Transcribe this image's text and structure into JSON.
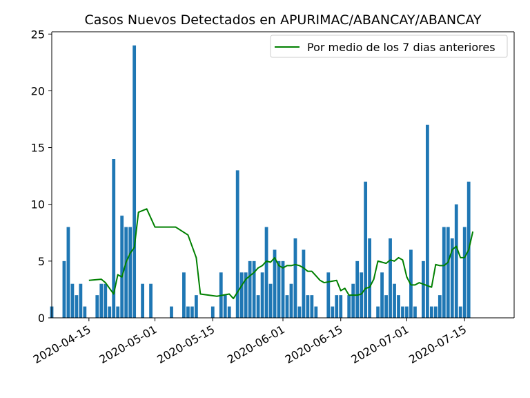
{
  "chart_data": {
    "type": "bar",
    "title": "Casos Nuevos Detectados en APURIMAC/ABANCAY/ABANCAY",
    "xlabel": "",
    "ylabel": "",
    "x_range": [
      "2020-04-06",
      "2020-07-27"
    ],
    "ylim": [
      0,
      25.2
    ],
    "y_ticks": [
      0,
      5,
      10,
      15,
      20,
      25
    ],
    "x_ticks": [
      "2020-04-15",
      "2020-05-01",
      "2020-05-15",
      "2020-06-01",
      "2020-06-15",
      "2020-07-01",
      "2020-07-15"
    ],
    "grid": false,
    "legend_position": "top-right",
    "colors": {
      "bars": "#1f77b4",
      "line": "#008000",
      "axis": "#000000"
    },
    "series": [
      {
        "type": "bar",
        "points": [
          [
            "2020-04-06",
            1
          ],
          [
            "2020-04-09",
            5
          ],
          [
            "2020-04-10",
            8
          ],
          [
            "2020-04-11",
            3
          ],
          [
            "2020-04-12",
            2
          ],
          [
            "2020-04-13",
            3
          ],
          [
            "2020-04-14",
            1
          ],
          [
            "2020-04-17",
            2
          ],
          [
            "2020-04-18",
            3
          ],
          [
            "2020-04-19",
            3
          ],
          [
            "2020-04-20",
            1
          ],
          [
            "2020-04-21",
            14
          ],
          [
            "2020-04-22",
            1
          ],
          [
            "2020-04-23",
            9
          ],
          [
            "2020-04-24",
            8
          ],
          [
            "2020-04-25",
            8
          ],
          [
            "2020-04-26",
            24
          ],
          [
            "2020-04-28",
            3
          ],
          [
            "2020-04-30",
            3
          ],
          [
            "2020-05-05",
            1
          ],
          [
            "2020-05-08",
            4
          ],
          [
            "2020-05-09",
            1
          ],
          [
            "2020-05-10",
            1
          ],
          [
            "2020-05-11",
            2
          ],
          [
            "2020-05-15",
            1
          ],
          [
            "2020-05-17",
            4
          ],
          [
            "2020-05-18",
            2
          ],
          [
            "2020-05-19",
            1
          ],
          [
            "2020-05-21",
            13
          ],
          [
            "2020-05-22",
            4
          ],
          [
            "2020-05-23",
            4
          ],
          [
            "2020-05-24",
            5
          ],
          [
            "2020-05-25",
            5
          ],
          [
            "2020-05-26",
            2
          ],
          [
            "2020-05-27",
            4
          ],
          [
            "2020-05-28",
            8
          ],
          [
            "2020-05-29",
            3
          ],
          [
            "2020-05-30",
            6
          ],
          [
            "2020-05-31",
            5
          ],
          [
            "2020-06-01",
            5
          ],
          [
            "2020-06-02",
            2
          ],
          [
            "2020-06-03",
            3
          ],
          [
            "2020-06-04",
            7
          ],
          [
            "2020-06-05",
            1
          ],
          [
            "2020-06-06",
            6
          ],
          [
            "2020-06-07",
            2
          ],
          [
            "2020-06-08",
            2
          ],
          [
            "2020-06-09",
            1
          ],
          [
            "2020-06-12",
            4
          ],
          [
            "2020-06-13",
            1
          ],
          [
            "2020-06-14",
            2
          ],
          [
            "2020-06-15",
            2
          ],
          [
            "2020-06-17",
            2
          ],
          [
            "2020-06-18",
            3
          ],
          [
            "2020-06-19",
            5
          ],
          [
            "2020-06-20",
            4
          ],
          [
            "2020-06-21",
            12
          ],
          [
            "2020-06-22",
            7
          ],
          [
            "2020-06-24",
            1
          ],
          [
            "2020-06-25",
            4
          ],
          [
            "2020-06-26",
            2
          ],
          [
            "2020-06-27",
            7
          ],
          [
            "2020-06-28",
            3
          ],
          [
            "2020-06-29",
            2
          ],
          [
            "2020-06-30",
            1
          ],
          [
            "2020-07-01",
            1
          ],
          [
            "2020-07-02",
            6
          ],
          [
            "2020-07-03",
            1
          ],
          [
            "2020-07-05",
            5
          ],
          [
            "2020-07-06",
            17
          ],
          [
            "2020-07-07",
            1
          ],
          [
            "2020-07-08",
            1
          ],
          [
            "2020-07-09",
            2
          ],
          [
            "2020-07-10",
            8
          ],
          [
            "2020-07-11",
            8
          ],
          [
            "2020-07-12",
            7
          ],
          [
            "2020-07-13",
            10
          ],
          [
            "2020-07-14",
            1
          ],
          [
            "2020-07-15",
            8
          ],
          [
            "2020-07-16",
            12
          ]
        ]
      },
      {
        "type": "line",
        "name": "Por medio de los 7 dias anteriores",
        "points": [
          [
            "2020-04-15",
            3.3
          ],
          [
            "2020-04-18",
            3.4
          ],
          [
            "2020-04-19",
            3.1
          ],
          [
            "2020-04-20",
            2.6
          ],
          [
            "2020-04-21",
            2.1
          ],
          [
            "2020-04-22",
            3.8
          ],
          [
            "2020-04-23",
            3.6
          ],
          [
            "2020-04-24",
            4.9
          ],
          [
            "2020-04-25",
            5.7
          ],
          [
            "2020-04-26",
            6.2
          ],
          [
            "2020-04-27",
            9.3
          ],
          [
            "2020-04-29",
            9.6
          ],
          [
            "2020-05-01",
            8.0
          ],
          [
            "2020-05-05",
            8.0
          ],
          [
            "2020-05-06",
            8.0
          ],
          [
            "2020-05-09",
            7.3
          ],
          [
            "2020-05-11",
            5.3
          ],
          [
            "2020-05-12",
            2.1
          ],
          [
            "2020-05-16",
            1.9
          ],
          [
            "2020-05-19",
            2.1
          ],
          [
            "2020-05-20",
            1.7
          ],
          [
            "2020-05-23",
            3.4
          ],
          [
            "2020-05-25",
            4.0
          ],
          [
            "2020-05-26",
            4.4
          ],
          [
            "2020-05-27",
            4.6
          ],
          [
            "2020-05-28",
            5.0
          ],
          [
            "2020-05-29",
            4.9
          ],
          [
            "2020-05-30",
            5.3
          ],
          [
            "2020-05-31",
            4.6
          ],
          [
            "2020-06-01",
            4.4
          ],
          [
            "2020-06-02",
            4.6
          ],
          [
            "2020-06-03",
            4.6
          ],
          [
            "2020-06-04",
            4.7
          ],
          [
            "2020-06-05",
            4.6
          ],
          [
            "2020-06-06",
            4.4
          ],
          [
            "2020-06-07",
            4.1
          ],
          [
            "2020-06-08",
            4.1
          ],
          [
            "2020-06-09",
            3.7
          ],
          [
            "2020-06-10",
            3.3
          ],
          [
            "2020-06-11",
            3.1
          ],
          [
            "2020-06-14",
            3.3
          ],
          [
            "2020-06-15",
            2.4
          ],
          [
            "2020-06-16",
            2.6
          ],
          [
            "2020-06-17",
            2.0
          ],
          [
            "2020-06-19",
            2.0
          ],
          [
            "2020-06-20",
            2.1
          ],
          [
            "2020-06-21",
            2.6
          ],
          [
            "2020-06-22",
            2.7
          ],
          [
            "2020-06-23",
            3.4
          ],
          [
            "2020-06-24",
            5.0
          ],
          [
            "2020-06-25",
            4.9
          ],
          [
            "2020-06-26",
            4.8
          ],
          [
            "2020-06-27",
            5.1
          ],
          [
            "2020-06-28",
            5.0
          ],
          [
            "2020-06-29",
            5.3
          ],
          [
            "2020-06-30",
            5.1
          ],
          [
            "2020-07-01",
            3.6
          ],
          [
            "2020-07-02",
            2.9
          ],
          [
            "2020-07-03",
            2.9
          ],
          [
            "2020-07-04",
            3.1
          ],
          [
            "2020-07-07",
            2.7
          ],
          [
            "2020-07-08",
            4.7
          ],
          [
            "2020-07-09",
            4.6
          ],
          [
            "2020-07-10",
            4.6
          ],
          [
            "2020-07-11",
            4.9
          ],
          [
            "2020-07-12",
            6.0
          ],
          [
            "2020-07-13",
            6.3
          ],
          [
            "2020-07-14",
            5.3
          ],
          [
            "2020-07-15",
            5.3
          ],
          [
            "2020-07-16",
            6.0
          ],
          [
            "2020-07-17",
            7.6
          ]
        ]
      }
    ]
  }
}
